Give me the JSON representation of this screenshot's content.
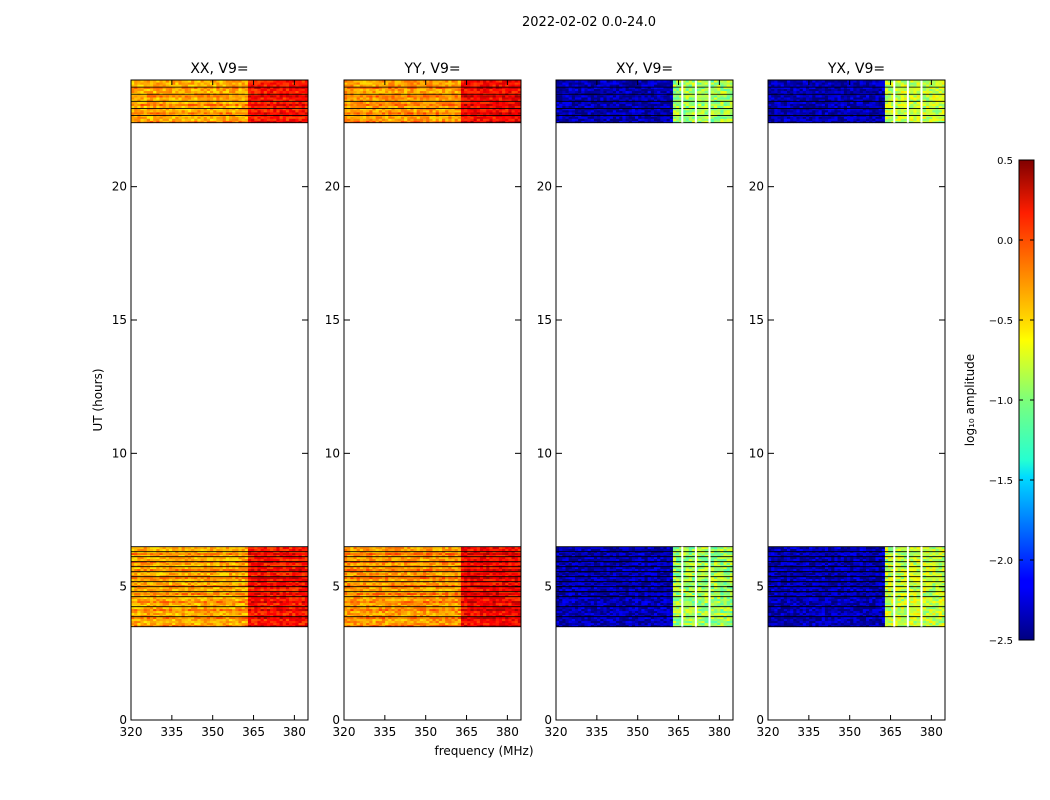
{
  "chart_data": {
    "type": "heatmap",
    "title": "2022-02-02 0.0-24.0",
    "xlabel": "frequency (MHz)",
    "ylabel": "UT (hours)",
    "xlim": [
      320,
      385
    ],
    "ylim": [
      0,
      24
    ],
    "x_ticks": [
      320,
      335,
      350,
      365,
      380
    ],
    "y_ticks": [
      0,
      5,
      10,
      15,
      20
    ],
    "colorbar": {
      "label": "log₁₀ amplitude",
      "range": [
        -2.5,
        0.5
      ],
      "ticks": [
        0.5,
        0.0,
        -0.5,
        -1.0,
        -1.5,
        -2.0,
        -2.5
      ],
      "tick_labels": [
        "0.5",
        "0.0",
        "−0.5",
        "−1.0",
        "−1.5",
        "−2.0",
        "−2.5"
      ],
      "colormap": "jet"
    },
    "data_segments_ut": [
      [
        3.5,
        6.5
      ],
      [
        22.4,
        24.0
      ]
    ],
    "panels": [
      {
        "title": "XX, V9=",
        "base_low_freq": -0.4,
        "base_high_freq": 0.05
      },
      {
        "title": "YY, V9=",
        "base_low_freq": -0.35,
        "base_high_freq": 0.1
      },
      {
        "title": "XY, V9=",
        "base_low_freq": -2.35,
        "base_high_freq": -0.9
      },
      {
        "title": "YX, V9=",
        "base_low_freq": -2.35,
        "base_high_freq": -0.8
      }
    ],
    "high_band_start_mhz": 362
  },
  "colors": {
    "axis": "#000000",
    "background": "#ffffff"
  }
}
